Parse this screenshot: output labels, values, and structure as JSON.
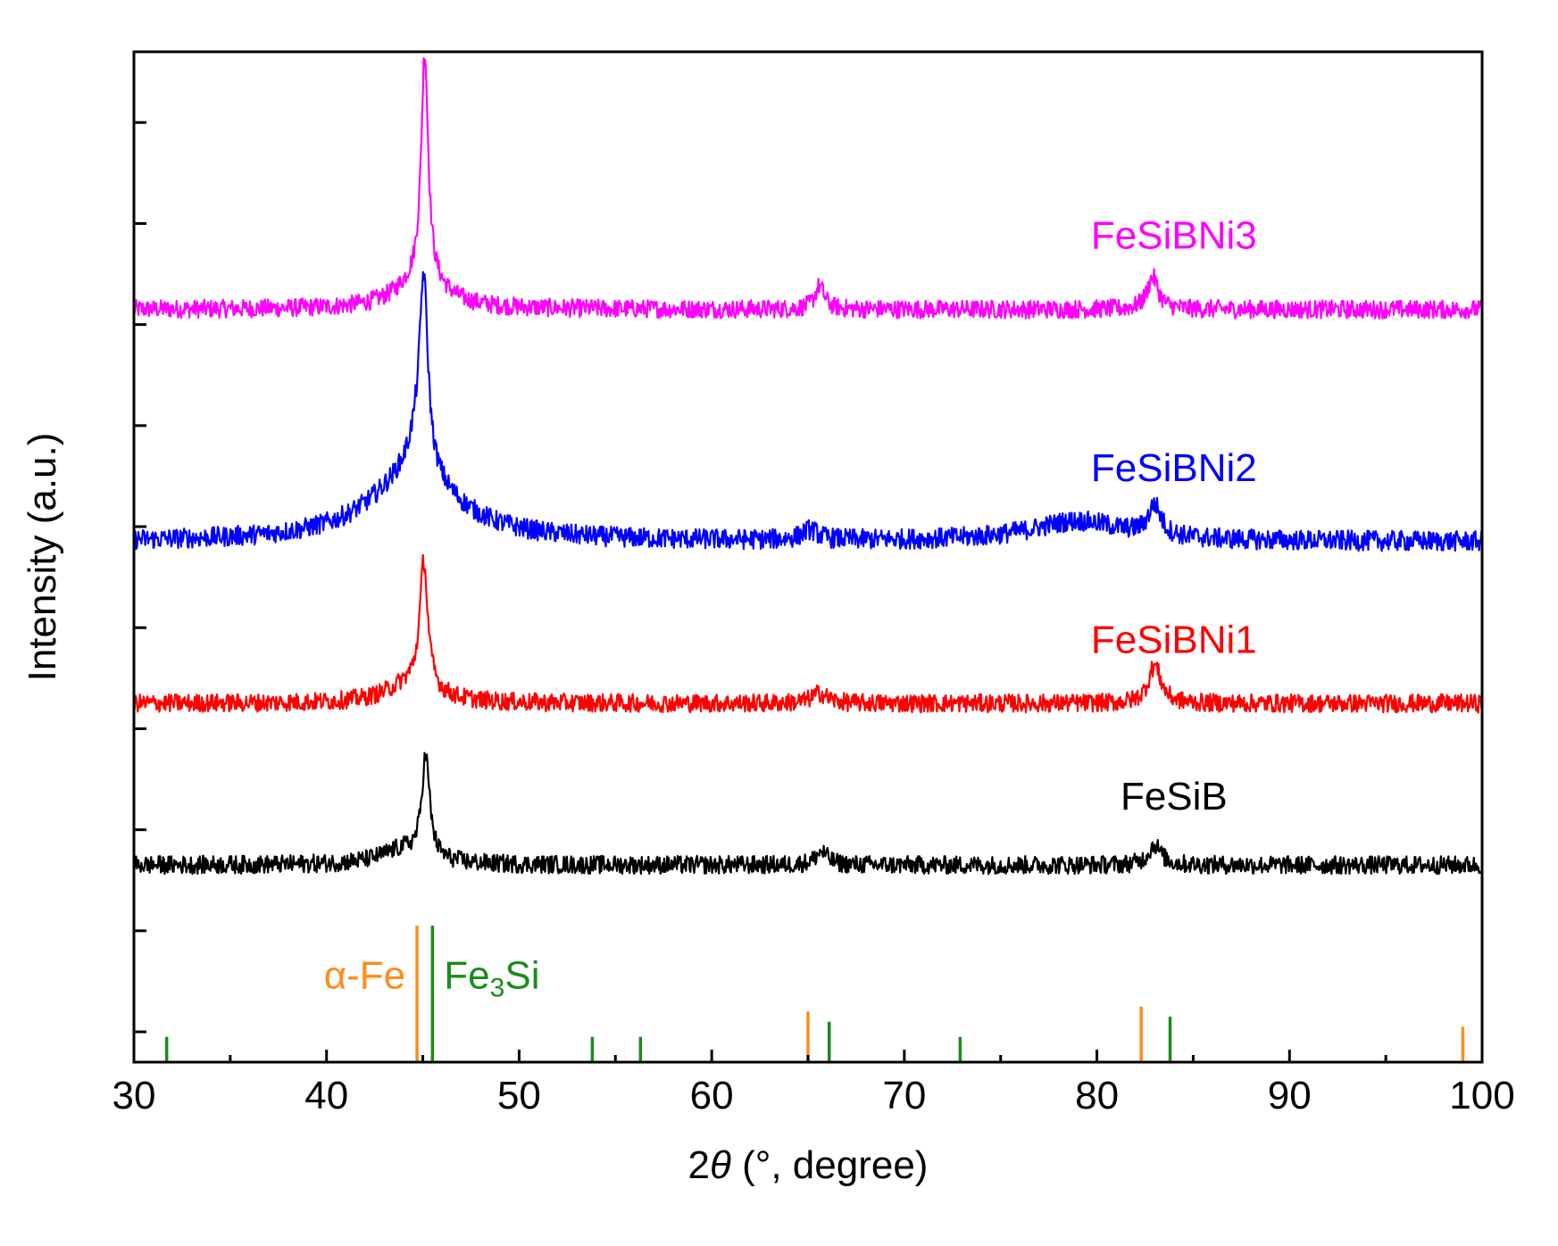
{
  "chart_data": {
    "type": "line",
    "title": "",
    "xlabel_prefix": "2",
    "xlabel_symbol": "θ",
    "xlabel_suffix": " (°, degree)",
    "ylabel": "Intensity (a.u.)",
    "xlim": [
      30,
      100
    ],
    "ylim": [
      0,
      100
    ],
    "xticks": [
      30,
      40,
      50,
      60,
      70,
      80,
      90,
      100
    ],
    "x_minor_step": 5,
    "yticks_major": [
      3,
      23,
      43,
      63,
      83,
      103
    ],
    "yticks_minor": [
      13,
      33,
      53,
      73,
      93
    ],
    "series": [
      {
        "name": "FeSiBNi3",
        "label": "FeSiBNi3",
        "color": "#ff00ff",
        "baseline": 74.5,
        "noise": 0.9,
        "peaks": [
          {
            "x": 44.9,
            "h": 3.0,
            "w": 1.5
          },
          {
            "x": 45.1,
            "h": 22.5,
            "w": 0.22
          },
          {
            "x": 65.6,
            "h": 2.3,
            "w": 0.3
          },
          {
            "x": 82.9,
            "h": 3.2,
            "w": 0.35
          }
        ]
      },
      {
        "name": "FeSiBNi2",
        "label": "FeSiBNi2",
        "color": "#0000ff",
        "baseline": 51.5,
        "noise": 1.0,
        "peaks": [
          {
            "x": 44.5,
            "h": 6.5,
            "w": 2.8
          },
          {
            "x": 44.8,
            "h": 4.0,
            "w": 0.6
          },
          {
            "x": 45.05,
            "h": 17.0,
            "w": 0.25
          },
          {
            "x": 65.1,
            "h": 1.0,
            "w": 0.5
          },
          {
            "x": 79.0,
            "h": 2.0,
            "w": 3.0
          },
          {
            "x": 83.0,
            "h": 3.0,
            "w": 0.4
          }
        ]
      },
      {
        "name": "FeSiBNi1",
        "label": "FeSiBNi1",
        "color": "#ff0000",
        "baseline": 35.5,
        "noise": 0.9,
        "peaks": [
          {
            "x": 44.4,
            "h": 2.0,
            "w": 1.5
          },
          {
            "x": 45.05,
            "h": 12.5,
            "w": 0.25
          },
          {
            "x": 65.6,
            "h": 1.0,
            "w": 0.5
          },
          {
            "x": 83.0,
            "h": 3.8,
            "w": 0.4
          }
        ]
      },
      {
        "name": "FeSiB",
        "label": "FeSiB",
        "color": "#000000",
        "baseline": 19.5,
        "noise": 0.9,
        "peaks": [
          {
            "x": 44.0,
            "h": 1.5,
            "w": 1.5
          },
          {
            "x": 45.15,
            "h": 10.0,
            "w": 0.25
          },
          {
            "x": 65.7,
            "h": 1.3,
            "w": 0.4
          },
          {
            "x": 83.0,
            "h": 2.0,
            "w": 0.4
          }
        ]
      }
    ],
    "reference_patterns": [
      {
        "name": "α-Fe",
        "color": "#ff8c1a",
        "lines": [
          {
            "x": 44.7,
            "h": 13.5
          },
          {
            "x": 65.0,
            "h": 5.0
          },
          {
            "x": 82.3,
            "h": 5.5
          },
          {
            "x": 99.0,
            "h": 3.5
          }
        ]
      },
      {
        "name": "Fe₃Si",
        "name_main": "Fe",
        "name_sub": "3",
        "name_rest": "Si",
        "color": "#1a8c1a",
        "lines": [
          {
            "x": 31.7,
            "h": 2.5
          },
          {
            "x": 45.5,
            "h": 13.5
          },
          {
            "x": 53.8,
            "h": 2.5
          },
          {
            "x": 56.3,
            "h": 2.5
          },
          {
            "x": 66.1,
            "h": 4.0
          },
          {
            "x": 72.9,
            "h": 2.5
          },
          {
            "x": 83.8,
            "h": 4.5
          }
        ]
      }
    ]
  }
}
